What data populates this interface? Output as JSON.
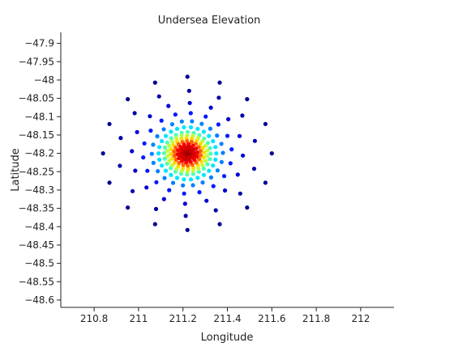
{
  "chart_data": {
    "type": "scatter",
    "title": "Undersea Elevation",
    "xlabel": "Longitude",
    "ylabel": "Latitude",
    "xlim": [
      210.65,
      212.15
    ],
    "ylim": [
      -48.62,
      -47.87
    ],
    "x_ticks": [
      210.8,
      211.0,
      211.2,
      211.4,
      211.6,
      211.8,
      212.0
    ],
    "x_tick_labels": [
      "210.8",
      "211",
      "211.2",
      "211.4",
      "211.6",
      "211.8",
      "212"
    ],
    "y_ticks": [
      -47.9,
      -47.95,
      -48.0,
      -48.05,
      -48.1,
      -48.15,
      -48.2,
      -48.25,
      -48.3,
      -48.35,
      -48.4,
      -48.45,
      -48.5,
      -48.55,
      -48.6
    ],
    "y_tick_labels": [
      "−47.9",
      "−47.95",
      "−48",
      "−48.05",
      "−48.1",
      "−48.15",
      "−48.2",
      "−48.25",
      "−48.3",
      "−48.35",
      "−48.4",
      "−48.45",
      "−48.5",
      "−48.55",
      "−48.6"
    ],
    "grid": false,
    "legend": "none",
    "colorscale": "jet",
    "colors": {
      "low": "#00008f",
      "high": "#800000"
    },
    "center": {
      "x": 211.22,
      "y": -48.2
    },
    "rings": [
      {
        "radius": 0.03,
        "points": 10,
        "phase": 0.0,
        "value": 0.95
      },
      {
        "radius": 0.045,
        "points": 14,
        "phase": 0.1,
        "value": 0.88
      },
      {
        "radius": 0.06,
        "points": 18,
        "phase": 0.2,
        "value": 0.78
      },
      {
        "radius": 0.075,
        "points": 20,
        "phase": 0.05,
        "value": 0.66
      },
      {
        "radius": 0.09,
        "points": 22,
        "phase": 0.15,
        "value": 0.56
      },
      {
        "radius": 0.105,
        "points": 24,
        "phase": 0.25,
        "value": 0.45
      },
      {
        "radius": 0.13,
        "points": 26,
        "phase": 0.0,
        "value": 0.35
      },
      {
        "radius": 0.16,
        "points": 22,
        "phase": 0.3,
        "value": 0.25
      },
      {
        "radius": 0.2,
        "points": 18,
        "phase": 0.1,
        "value": 0.15
      },
      {
        "radius": 0.25,
        "points": 16,
        "phase": 0.35,
        "value": 0.08
      },
      {
        "radius": 0.31,
        "points": 14,
        "phase": 0.2,
        "value": 0.04
      },
      {
        "radius": 0.38,
        "points": 16,
        "phase": 0.0,
        "value": 0.02
      }
    ],
    "core": {
      "points": 28,
      "max_radius": 0.035,
      "value_min": 0.9,
      "value_max": 1.0
    }
  }
}
